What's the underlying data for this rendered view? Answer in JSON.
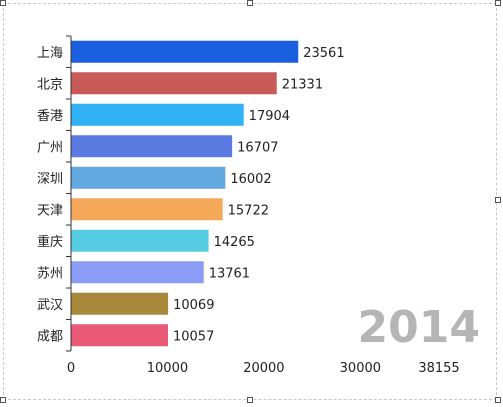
{
  "chart_data": {
    "type": "bar",
    "orientation": "horizontal",
    "categories": [
      "上海",
      "北京",
      "香港",
      "广州",
      "深圳",
      "天津",
      "重庆",
      "苏州",
      "武汉",
      "成都"
    ],
    "values": [
      23561,
      21331,
      17904,
      16707,
      16002,
      15722,
      14265,
      13761,
      10069,
      10057
    ],
    "colors": [
      "#1a5fe0",
      "#c85b58",
      "#32b2f6",
      "#5b7be2",
      "#62a9e0",
      "#f5a85a",
      "#57cde3",
      "#8a9cf5",
      "#a8883a",
      "#e85a75"
    ],
    "xlim": [
      0,
      38155
    ],
    "xticks": [
      0,
      10000,
      20000,
      30000,
      38155
    ],
    "grid": false,
    "legend": "none",
    "year_label": "2014",
    "title": "",
    "xlabel": "",
    "ylabel": ""
  }
}
